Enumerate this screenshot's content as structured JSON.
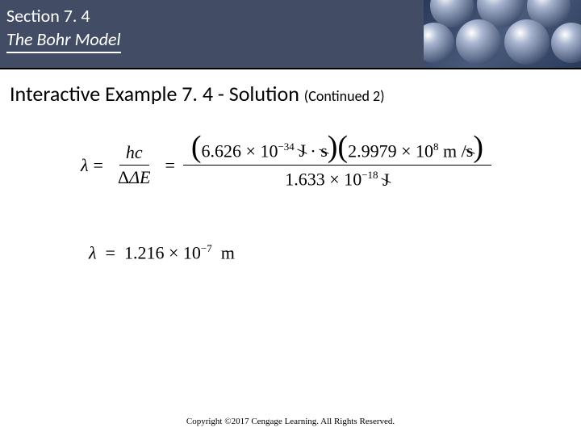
{
  "header": {
    "section_label": "Section 7. 4",
    "subtitle": "The Bohr Model",
    "bar_color": "#424d65",
    "text_color": "#ffffff"
  },
  "title": {
    "main": "Interactive Example 7. 4 - Solution ",
    "continued": "(Continued 2)"
  },
  "equation1": {
    "lhs_symbol": "λ",
    "frac1_num": "hc",
    "frac1_den": "ΔE",
    "planck": "6.626",
    "planck_exp": "−34",
    "unit_j": "J",
    "unit_s1": "s",
    "speed": "2.9979",
    "speed_exp": "8",
    "unit_m": "m",
    "unit_s2": "s",
    "denom_val": "1.633",
    "denom_exp": "−18",
    "denom_unit": "J",
    "times": "×",
    "ten": "10",
    "dot": "·",
    "slash": "/"
  },
  "equation2": {
    "symbol": "λ",
    "val": "1.216",
    "times": "×",
    "ten": "10",
    "exp": "−7",
    "unit": "m"
  },
  "copyright": "Copyright ©2017 Cengage Learning. All Rights Reserved.",
  "decor": {
    "spheres": [
      {
        "l": 8,
        "t": -20,
        "s": 54
      },
      {
        "l": 66,
        "t": -24,
        "s": 58
      },
      {
        "l": 128,
        "t": -20,
        "s": 54
      },
      {
        "l": -12,
        "t": 28,
        "s": 50
      },
      {
        "l": 40,
        "t": 24,
        "s": 56
      },
      {
        "l": 100,
        "t": 24,
        "s": 56
      },
      {
        "l": 158,
        "t": 28,
        "s": 50
      }
    ]
  }
}
